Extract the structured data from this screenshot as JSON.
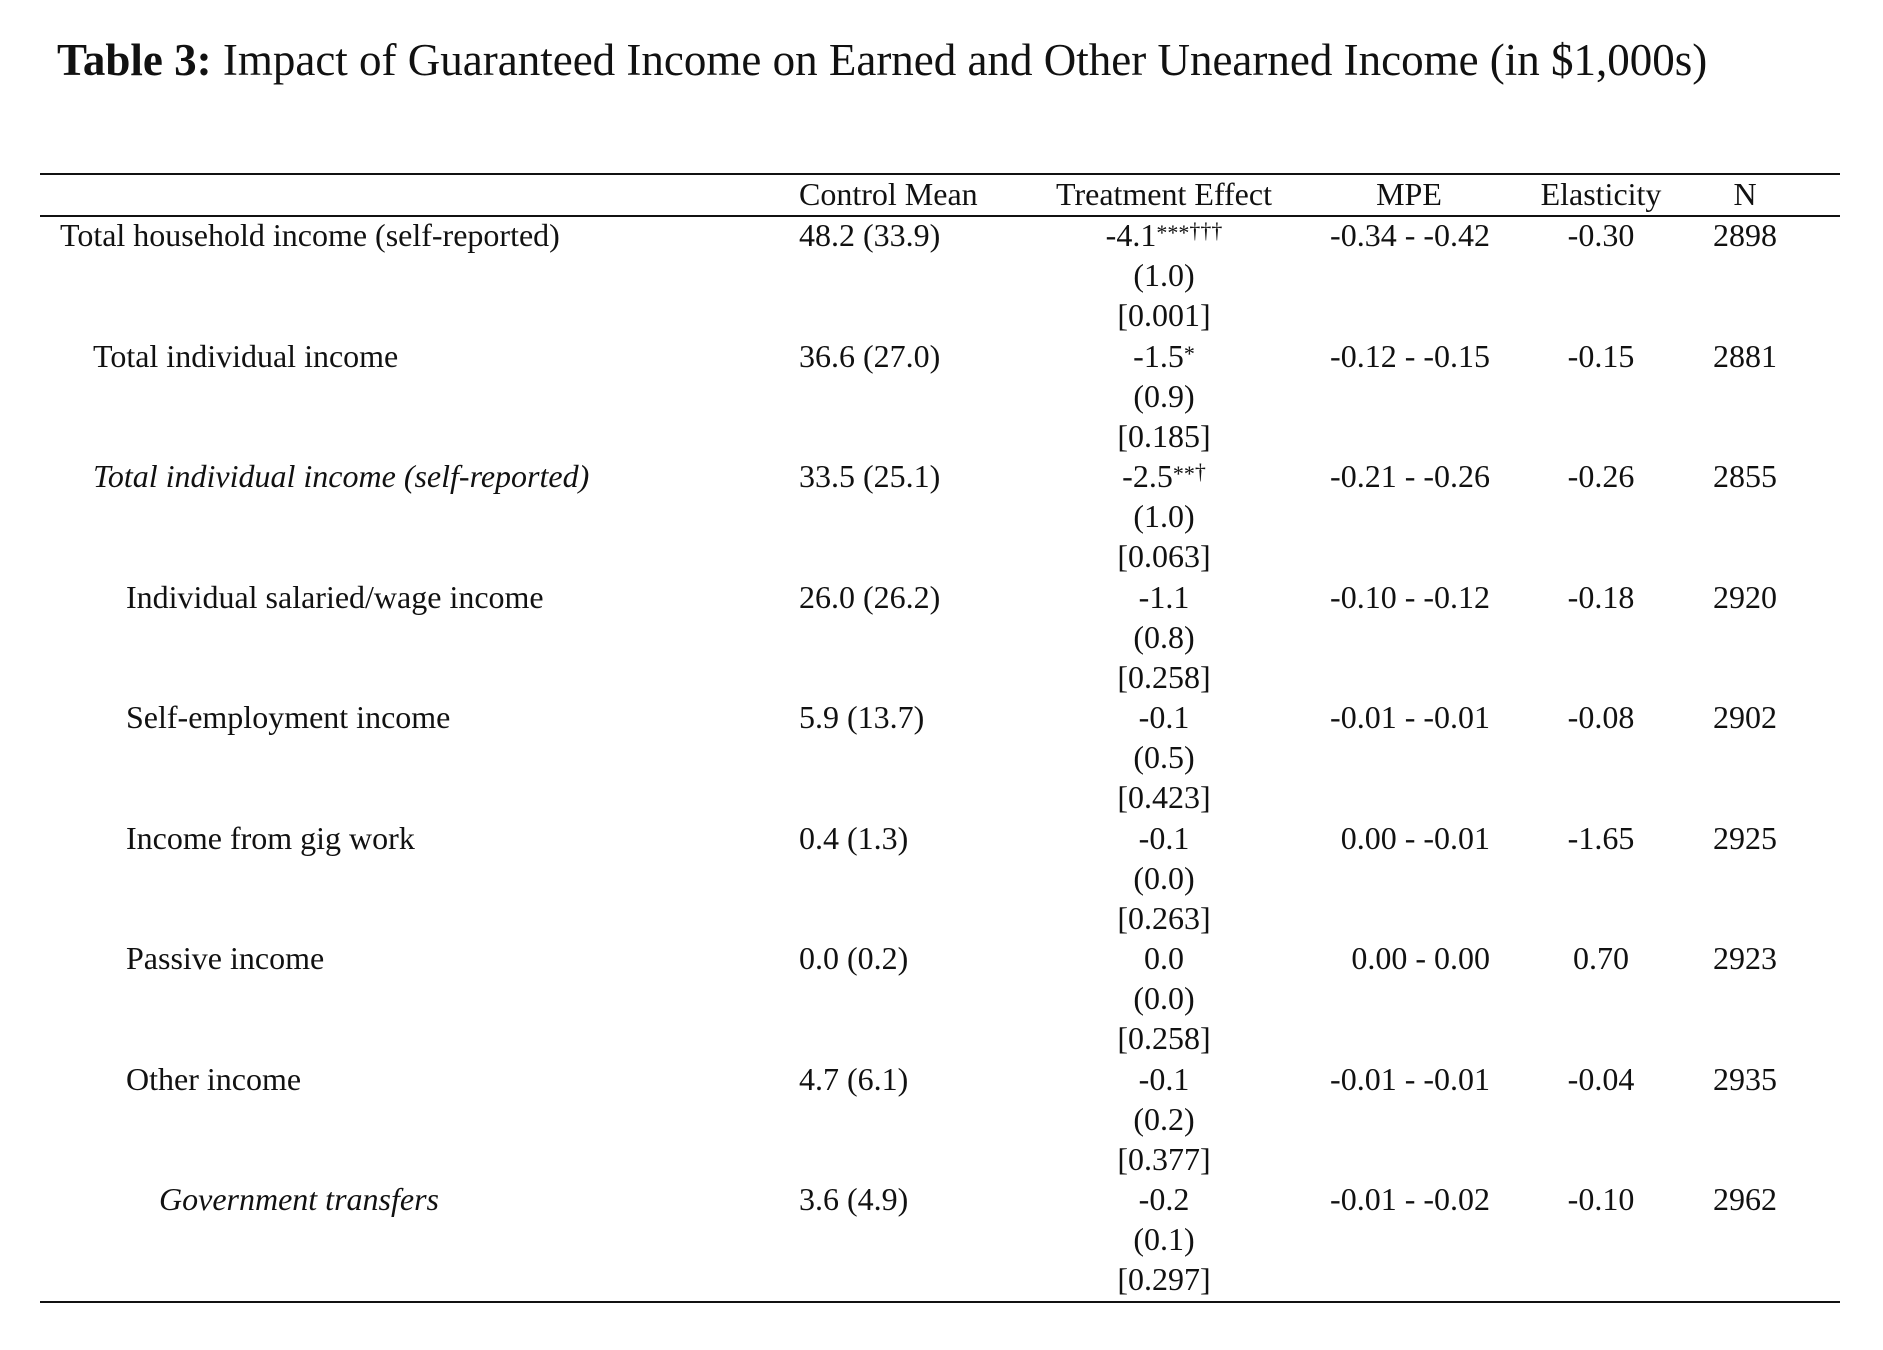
{
  "caption": {
    "label": "Table 3:",
    "text": "Impact of Guaranteed Income on Earned and Other Unearned Income (in $1,000s)"
  },
  "columns": [
    "Control Mean",
    "Treatment Effect",
    "MPE",
    "Elasticity",
    "N"
  ],
  "rows": [
    {
      "label": "Total household income (self-reported)",
      "italic": false,
      "indent": 0,
      "control_mean": "48.2 (33.9)",
      "effect": "-4.1",
      "stars": "***",
      "daggers": "†††",
      "se": "(1.0)",
      "p": "[0.001]",
      "mpe": "-0.34 - -0.42",
      "elasticity": "-0.30",
      "n": "2898"
    },
    {
      "label": "Total individual income",
      "italic": false,
      "indent": 1,
      "control_mean": "36.6 (27.0)",
      "effect": "-1.5",
      "stars": "*",
      "daggers": "",
      "se": "(0.9)",
      "p": "[0.185]",
      "mpe": "-0.12 - -0.15",
      "elasticity": "-0.15",
      "n": "2881"
    },
    {
      "label": "Total individual income (self-reported)",
      "italic": true,
      "indent": 1,
      "control_mean": "33.5 (25.1)",
      "effect": "-2.5",
      "stars": "**",
      "daggers": "†",
      "se": "(1.0)",
      "p": "[0.063]",
      "mpe": "-0.21 - -0.26",
      "elasticity": "-0.26",
      "n": "2855"
    },
    {
      "label": "Individual salaried/wage income",
      "italic": false,
      "indent": 2,
      "control_mean": "26.0 (26.2)",
      "effect": "-1.1",
      "stars": "",
      "daggers": "",
      "se": "(0.8)",
      "p": "[0.258]",
      "mpe": "-0.10 - -0.12",
      "elasticity": "-0.18",
      "n": "2920"
    },
    {
      "label": "Self-employment income",
      "italic": false,
      "indent": 2,
      "control_mean": "5.9 (13.7)",
      "effect": "-0.1",
      "stars": "",
      "daggers": "",
      "se": "(0.5)",
      "p": "[0.423]",
      "mpe": "-0.01 - -0.01",
      "elasticity": "-0.08",
      "n": "2902"
    },
    {
      "label": "Income from gig work",
      "italic": false,
      "indent": 2,
      "control_mean": "0.4 (1.3)",
      "effect": "-0.1",
      "stars": "",
      "daggers": "",
      "se": "(0.0)",
      "p": "[0.263]",
      "mpe": "0.00 - -0.01",
      "elasticity": "-1.65",
      "n": "2925"
    },
    {
      "label": "Passive income",
      "italic": false,
      "indent": 2,
      "control_mean": "0.0 (0.2)",
      "effect": "0.0",
      "stars": "",
      "daggers": "",
      "se": "(0.0)",
      "p": "[0.258]",
      "mpe": "0.00 - 0.00",
      "elasticity": "0.70",
      "n": "2923"
    },
    {
      "label": "Other income",
      "italic": false,
      "indent": 2,
      "control_mean": "4.7 (6.1)",
      "effect": "-0.1",
      "stars": "",
      "daggers": "",
      "se": "(0.2)",
      "p": "[0.377]",
      "mpe": "-0.01 - -0.01",
      "elasticity": "-0.04",
      "n": "2935"
    },
    {
      "label": "Government transfers",
      "italic": true,
      "indent": 3,
      "control_mean": "3.6 (4.9)",
      "effect": "-0.2",
      "stars": "",
      "daggers": "",
      "se": "(0.1)",
      "p": "[0.297]",
      "mpe": "-0.01 - -0.02",
      "elasticity": "-0.10",
      "n": "2962"
    }
  ]
}
